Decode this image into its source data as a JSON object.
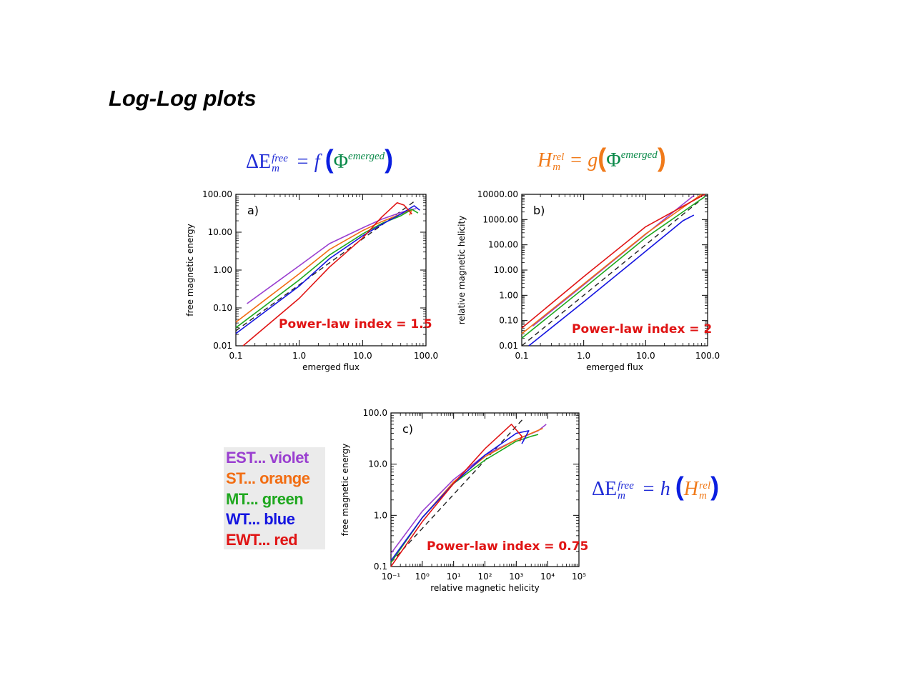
{
  "slide": {
    "title": "Log-Log plots"
  },
  "formulas": [
    {
      "lhs": "ΔE",
      "lhs_sup": "free",
      "lhs_sub": "m",
      "op": "= f",
      "arg": "Φ",
      "arg_sup": "emerged",
      "colors": {
        "lhs": "#1f2bd6",
        "paren": "#0a1ee0",
        "arg": "#0b8a4a"
      }
    },
    {
      "lhs": "H",
      "lhs_sup": "rel",
      "lhs_sub": "m",
      "op": "= g",
      "arg": "Φ",
      "arg_sup": "emerged",
      "colors": {
        "lhs": "#f07a1a",
        "paren": "#f07a1a",
        "arg": "#0b8a4a"
      }
    },
    {
      "lhs": "ΔE",
      "lhs_sup": "free",
      "lhs_sub": "m",
      "op": "= h",
      "arg": "H",
      "arg_sup": "rel",
      "arg_sub": "m",
      "colors": {
        "lhs": "#1f2bd6",
        "paren": "#0a1ee0",
        "arg": "#f07a1a"
      }
    }
  ],
  "legend": [
    {
      "label": "EST... violet",
      "color": "#9a3fd0"
    },
    {
      "label": "ST... orange",
      "color": "#f26d12"
    },
    {
      "label": "MT... green",
      "color": "#1fa81f"
    },
    {
      "label": "WT... blue",
      "color": "#1414e0"
    },
    {
      "label": "EWT... red",
      "color": "#e01414"
    }
  ],
  "chart_data": [
    {
      "type": "line",
      "panel_label": "a)",
      "xlabel": "emerged flux",
      "ylabel": "free magnetic energy",
      "xscale": "log",
      "yscale": "log",
      "xlim": [
        0.1,
        100.0
      ],
      "ylim": [
        0.01,
        100.0
      ],
      "xticks": [
        "0.1",
        "1.0",
        "10.0",
        "100.0"
      ],
      "yticks": [
        "0.01",
        "0.10",
        "1.00",
        "10.00",
        "100.00"
      ],
      "annotation": "Power-law index = 1.5",
      "reference_line": {
        "style": "dashed",
        "points": [
          [
            0.1,
            0.025
          ],
          [
            68,
            68
          ]
        ]
      },
      "series": [
        {
          "color": "#9a3fd0",
          "points": [
            [
              0.15,
              0.13
            ],
            [
              1,
              1.3
            ],
            [
              3,
              5
            ],
            [
              10,
              13
            ],
            [
              20,
              22
            ],
            [
              40,
              33
            ],
            [
              60,
              40
            ],
            [
              70,
              42
            ]
          ]
        },
        {
          "color": "#f26d12",
          "points": [
            [
              0.1,
              0.042
            ],
            [
              1,
              0.8
            ],
            [
              3,
              3.5
            ],
            [
              10,
              11
            ],
            [
              20,
              19
            ],
            [
              40,
              30
            ],
            [
              60,
              40
            ],
            [
              55,
              28
            ]
          ]
        },
        {
          "color": "#1fa81f",
          "points": [
            [
              0.1,
              0.03
            ],
            [
              1,
              0.55
            ],
            [
              3,
              2.5
            ],
            [
              10,
              9
            ],
            [
              20,
              17
            ],
            [
              40,
              27
            ],
            [
              60,
              40
            ],
            [
              75,
              32
            ]
          ]
        },
        {
          "color": "#1414e0",
          "points": [
            [
              0.1,
              0.021
            ],
            [
              1,
              0.38
            ],
            [
              3,
              2
            ],
            [
              10,
              8
            ],
            [
              20,
              16
            ],
            [
              40,
              30
            ],
            [
              65,
              50
            ],
            [
              80,
              38
            ]
          ]
        },
        {
          "color": "#e01414",
          "points": [
            [
              0.13,
              0.01
            ],
            [
              1,
              0.18
            ],
            [
              3,
              1.2
            ],
            [
              10,
              7
            ],
            [
              20,
              25
            ],
            [
              35,
              60
            ],
            [
              45,
              52
            ],
            [
              60,
              30
            ]
          ]
        }
      ]
    },
    {
      "type": "line",
      "panel_label": "b)",
      "xlabel": "emerged flux",
      "ylabel": "relative magnetic helicity",
      "xscale": "log",
      "yscale": "log",
      "xlim": [
        0.1,
        100.0
      ],
      "ylim": [
        0.01,
        10000.0
      ],
      "xticks": [
        "0.1",
        "1.0",
        "10.0",
        "100.0"
      ],
      "yticks": [
        "0.01",
        "0.10",
        "1.00",
        "10.00",
        "100.00",
        "1000.00",
        "10000.00"
      ],
      "annotation": "Power-law index = 2",
      "reference_line": {
        "style": "dashed",
        "points": [
          [
            0.1,
            0.01
          ],
          [
            100,
            10000
          ]
        ]
      },
      "series": [
        {
          "color": "#9a3fd0",
          "points": [
            [
              0.15,
              0.06
            ],
            [
              1,
              2.6
            ],
            [
              10,
              260
            ],
            [
              60,
              9000
            ]
          ]
        },
        {
          "color": "#f26d12",
          "points": [
            [
              0.1,
              0.03
            ],
            [
              1,
              2.8
            ],
            [
              10,
              270
            ],
            [
              80,
              10000
            ]
          ]
        },
        {
          "color": "#1fa81f",
          "points": [
            [
              0.1,
              0.02
            ],
            [
              1,
              1.9
            ],
            [
              10,
              190
            ],
            [
              90,
              8000
            ]
          ]
        },
        {
          "color": "#1414e0",
          "points": [
            [
              0.13,
              0.01
            ],
            [
              1,
              0.55
            ],
            [
              10,
              55
            ],
            [
              40,
              900
            ],
            [
              60,
              1500
            ]
          ]
        },
        {
          "color": "#e01414",
          "points": [
            [
              0.1,
              0.05
            ],
            [
              1,
              5.5
            ],
            [
              10,
              520
            ],
            [
              90,
              12000
            ]
          ]
        }
      ]
    },
    {
      "type": "line",
      "panel_label": "c)",
      "xlabel": "relative magnetic helicity",
      "ylabel": "free magnetic energy",
      "xscale": "log",
      "yscale": "log",
      "xlim": [
        0.1,
        100000
      ],
      "ylim": [
        0.1,
        100.0
      ],
      "xticks": [
        "10⁻¹",
        "10⁰",
        "10¹",
        "10²",
        "10³",
        "10⁴",
        "10⁵"
      ],
      "yticks": [
        "0.1",
        "1.0",
        "10.0",
        "100.0"
      ],
      "annotation": "Power-law index = 0.75",
      "reference_line": {
        "style": "dashed",
        "points": [
          [
            0.1,
            0.12
          ],
          [
            1600,
            75
          ]
        ]
      },
      "series": [
        {
          "color": "#9a3fd0",
          "points": [
            [
              0.1,
              0.18
            ],
            [
              1,
              1.2
            ],
            [
              10,
              5
            ],
            [
              100,
              15
            ],
            [
              1000,
              30
            ],
            [
              5000,
              45
            ],
            [
              9000,
              60
            ]
          ]
        },
        {
          "color": "#f26d12",
          "points": [
            [
              0.1,
              0.12
            ],
            [
              1,
              0.9
            ],
            [
              10,
              4.5
            ],
            [
              100,
              14
            ],
            [
              1000,
              30
            ],
            [
              3000,
              40
            ],
            [
              7000,
              50
            ]
          ]
        },
        {
          "color": "#1fa81f",
          "points": [
            [
              0.1,
              0.12
            ],
            [
              1,
              0.9
            ],
            [
              10,
              4.2
            ],
            [
              100,
              12
            ],
            [
              1000,
              28
            ],
            [
              3000,
              35
            ],
            [
              5000,
              38
            ]
          ]
        },
        {
          "color": "#1414e0",
          "points": [
            [
              0.1,
              0.13
            ],
            [
              1,
              0.9
            ],
            [
              10,
              4.2
            ],
            [
              100,
              15
            ],
            [
              1000,
              40
            ],
            [
              2500,
              45
            ],
            [
              1500,
              25
            ]
          ]
        },
        {
          "color": "#e01414",
          "points": [
            [
              0.1,
              0.1
            ],
            [
              1,
              0.75
            ],
            [
              10,
              4.2
            ],
            [
              100,
              20
            ],
            [
              700,
              60
            ],
            [
              1500,
              35
            ],
            [
              1300,
              28
            ]
          ]
        }
      ]
    }
  ]
}
